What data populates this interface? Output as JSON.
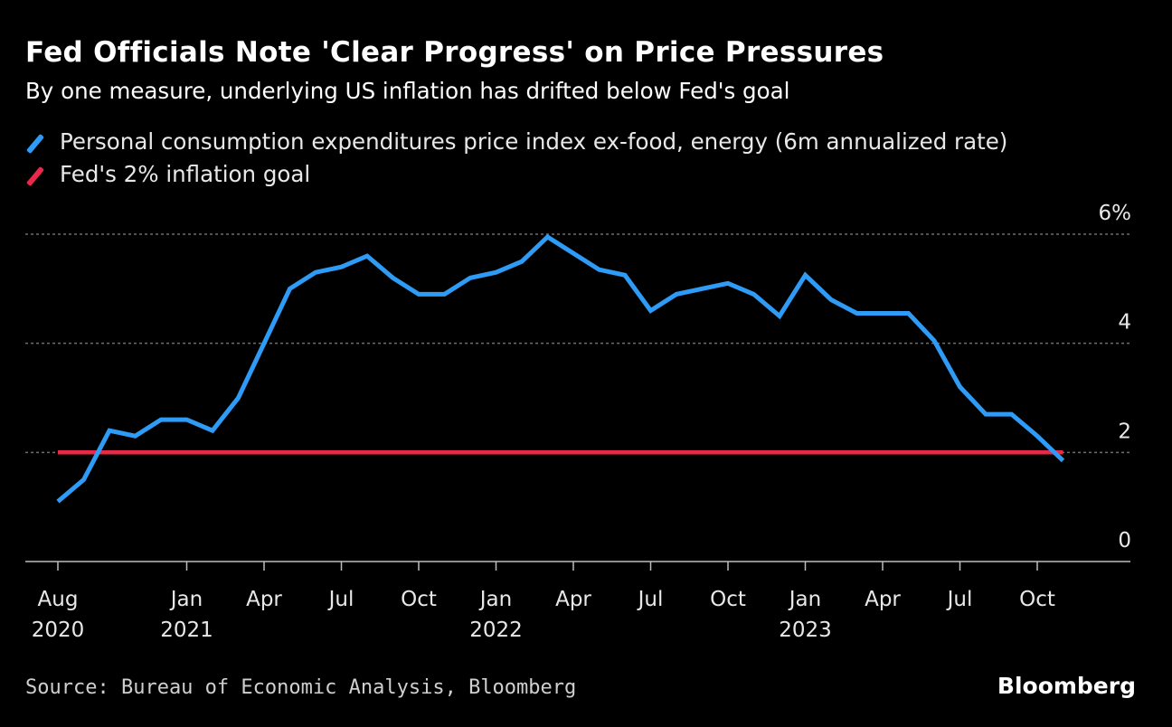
{
  "chart_data": {
    "type": "line",
    "title": "Fed Officials Note 'Clear Progress' on Price Pressures",
    "subtitle": "By one measure, underlying US inflation has drifted below Fed's goal",
    "xlabel": "",
    "ylabel": "",
    "ylim": [
      0,
      6
    ],
    "yticks": [
      {
        "value": 6,
        "label": "6%"
      },
      {
        "value": 4,
        "label": "4"
      },
      {
        "value": 2,
        "label": "2"
      },
      {
        "value": 0,
        "label": "0"
      }
    ],
    "grid": true,
    "legend_position": "top-left",
    "x": [
      "2020-08",
      "2020-09",
      "2020-10",
      "2020-11",
      "2020-12",
      "2021-01",
      "2021-02",
      "2021-03",
      "2021-04",
      "2021-05",
      "2021-06",
      "2021-07",
      "2021-08",
      "2021-09",
      "2021-10",
      "2021-11",
      "2021-12",
      "2022-01",
      "2022-02",
      "2022-03",
      "2022-04",
      "2022-05",
      "2022-06",
      "2022-07",
      "2022-08",
      "2022-09",
      "2022-10",
      "2022-11",
      "2022-12",
      "2023-01",
      "2023-02",
      "2023-03",
      "2023-04",
      "2023-05",
      "2023-06",
      "2023-07",
      "2023-08",
      "2023-09",
      "2023-10",
      "2023-11"
    ],
    "xticks": [
      {
        "x": "2020-08",
        "label": "Aug",
        "year": "2020"
      },
      {
        "x": "2021-01",
        "label": "Jan",
        "year": "2021"
      },
      {
        "x": "2021-04",
        "label": "Apr",
        "year": ""
      },
      {
        "x": "2021-07",
        "label": "Jul",
        "year": ""
      },
      {
        "x": "2021-10",
        "label": "Oct",
        "year": ""
      },
      {
        "x": "2022-01",
        "label": "Jan",
        "year": "2022"
      },
      {
        "x": "2022-04",
        "label": "Apr",
        "year": ""
      },
      {
        "x": "2022-07",
        "label": "Jul",
        "year": ""
      },
      {
        "x": "2022-10",
        "label": "Oct",
        "year": ""
      },
      {
        "x": "2023-01",
        "label": "Jan",
        "year": "2023"
      },
      {
        "x": "2023-04",
        "label": "Apr",
        "year": ""
      },
      {
        "x": "2023-07",
        "label": "Jul",
        "year": ""
      },
      {
        "x": "2023-10",
        "label": "Oct",
        "year": ""
      }
    ],
    "series": [
      {
        "name": "Personal consumption expenditures price index ex-food, energy (6m annualized rate)",
        "color": "#2e9bf6",
        "values": [
          1.1,
          1.5,
          2.4,
          2.3,
          2.6,
          2.6,
          2.4,
          3.0,
          4.0,
          5.0,
          5.3,
          5.4,
          5.6,
          5.2,
          4.9,
          4.9,
          5.2,
          5.3,
          5.5,
          5.95,
          5.65,
          5.35,
          5.25,
          4.6,
          4.9,
          5.0,
          5.1,
          4.9,
          4.5,
          5.25,
          4.8,
          4.55,
          4.55,
          4.55,
          4.05,
          3.2,
          2.7,
          2.7,
          2.3,
          1.85
        ]
      },
      {
        "name": "Fed's 2% inflation goal",
        "color": "#e8294a",
        "values": [
          2,
          2,
          2,
          2,
          2,
          2,
          2,
          2,
          2,
          2,
          2,
          2,
          2,
          2,
          2,
          2,
          2,
          2,
          2,
          2,
          2,
          2,
          2,
          2,
          2,
          2,
          2,
          2,
          2,
          2,
          2,
          2,
          2,
          2,
          2,
          2,
          2,
          2,
          2,
          2
        ]
      }
    ]
  },
  "source": "Source: Bureau of Economic Analysis, Bloomberg",
  "brand": "Bloomberg",
  "colors": {
    "background": "#000000",
    "gridline": "#6e6e6e",
    "axis": "#bdbdbd",
    "tick_text": "#e8e8e8"
  }
}
